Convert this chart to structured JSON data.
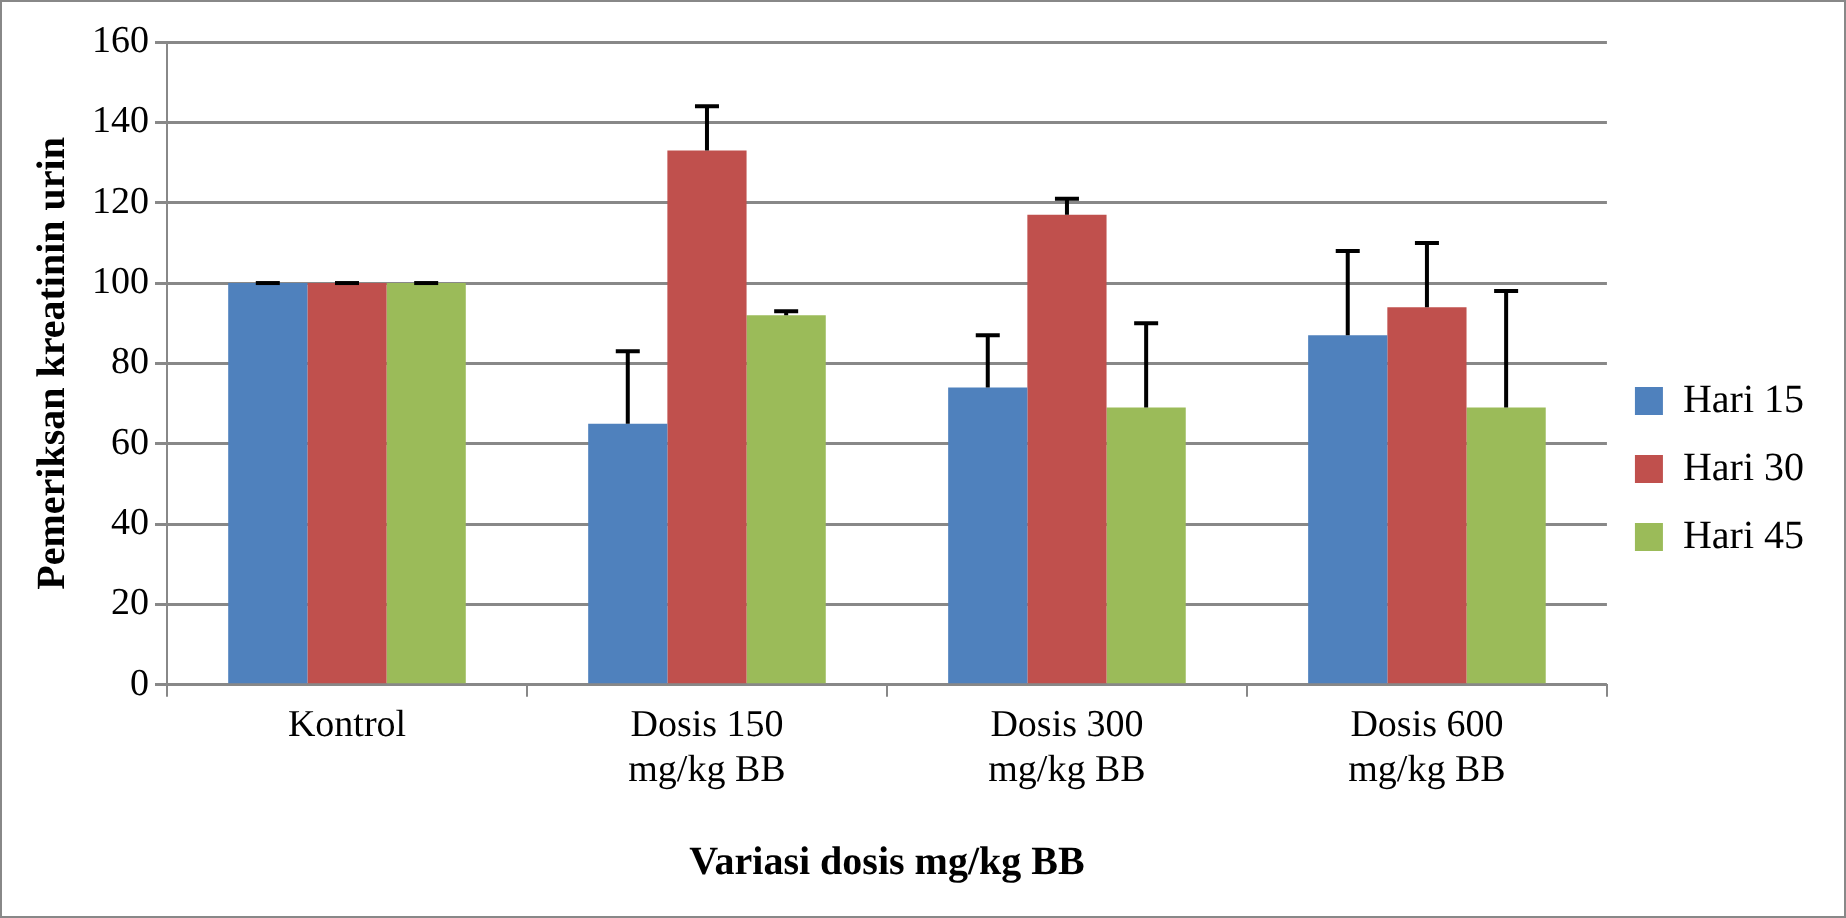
{
  "chart_data": {
    "type": "bar",
    "xlabel": "Variasi dosis mg/kg BB",
    "ylabel": "Pemeriksan kreatinin urin",
    "categories": [
      "Kontrol",
      "Dosis 150 mg/kg BB",
      "Dosis 300 mg/kg BB",
      "Dosis 600 mg/kg BB"
    ],
    "series": [
      {
        "name": "Hari 15",
        "color": "#4f81bd",
        "values": [
          100,
          65,
          74,
          87
        ],
        "errors": [
          [
            100,
            100
          ],
          [
            65,
            83
          ],
          [
            74,
            87
          ],
          [
            87,
            108
          ]
        ]
      },
      {
        "name": "Hari 30",
        "color": "#c0504d",
        "values": [
          100,
          133,
          117,
          94
        ],
        "errors": [
          [
            100,
            100
          ],
          [
            133,
            144
          ],
          [
            117,
            121
          ],
          [
            94,
            110
          ]
        ]
      },
      {
        "name": "Hari 45",
        "color": "#9bbb59",
        "values": [
          100,
          92,
          69,
          69
        ],
        "errors": [
          [
            100,
            100
          ],
          [
            92,
            93
          ],
          [
            69,
            90
          ],
          [
            69,
            98
          ]
        ]
      }
    ],
    "ylim": [
      0,
      160
    ],
    "yticks": [
      0,
      20,
      40,
      60,
      80,
      100,
      120,
      140,
      160
    ],
    "grid": "y",
    "legend": "right"
  }
}
